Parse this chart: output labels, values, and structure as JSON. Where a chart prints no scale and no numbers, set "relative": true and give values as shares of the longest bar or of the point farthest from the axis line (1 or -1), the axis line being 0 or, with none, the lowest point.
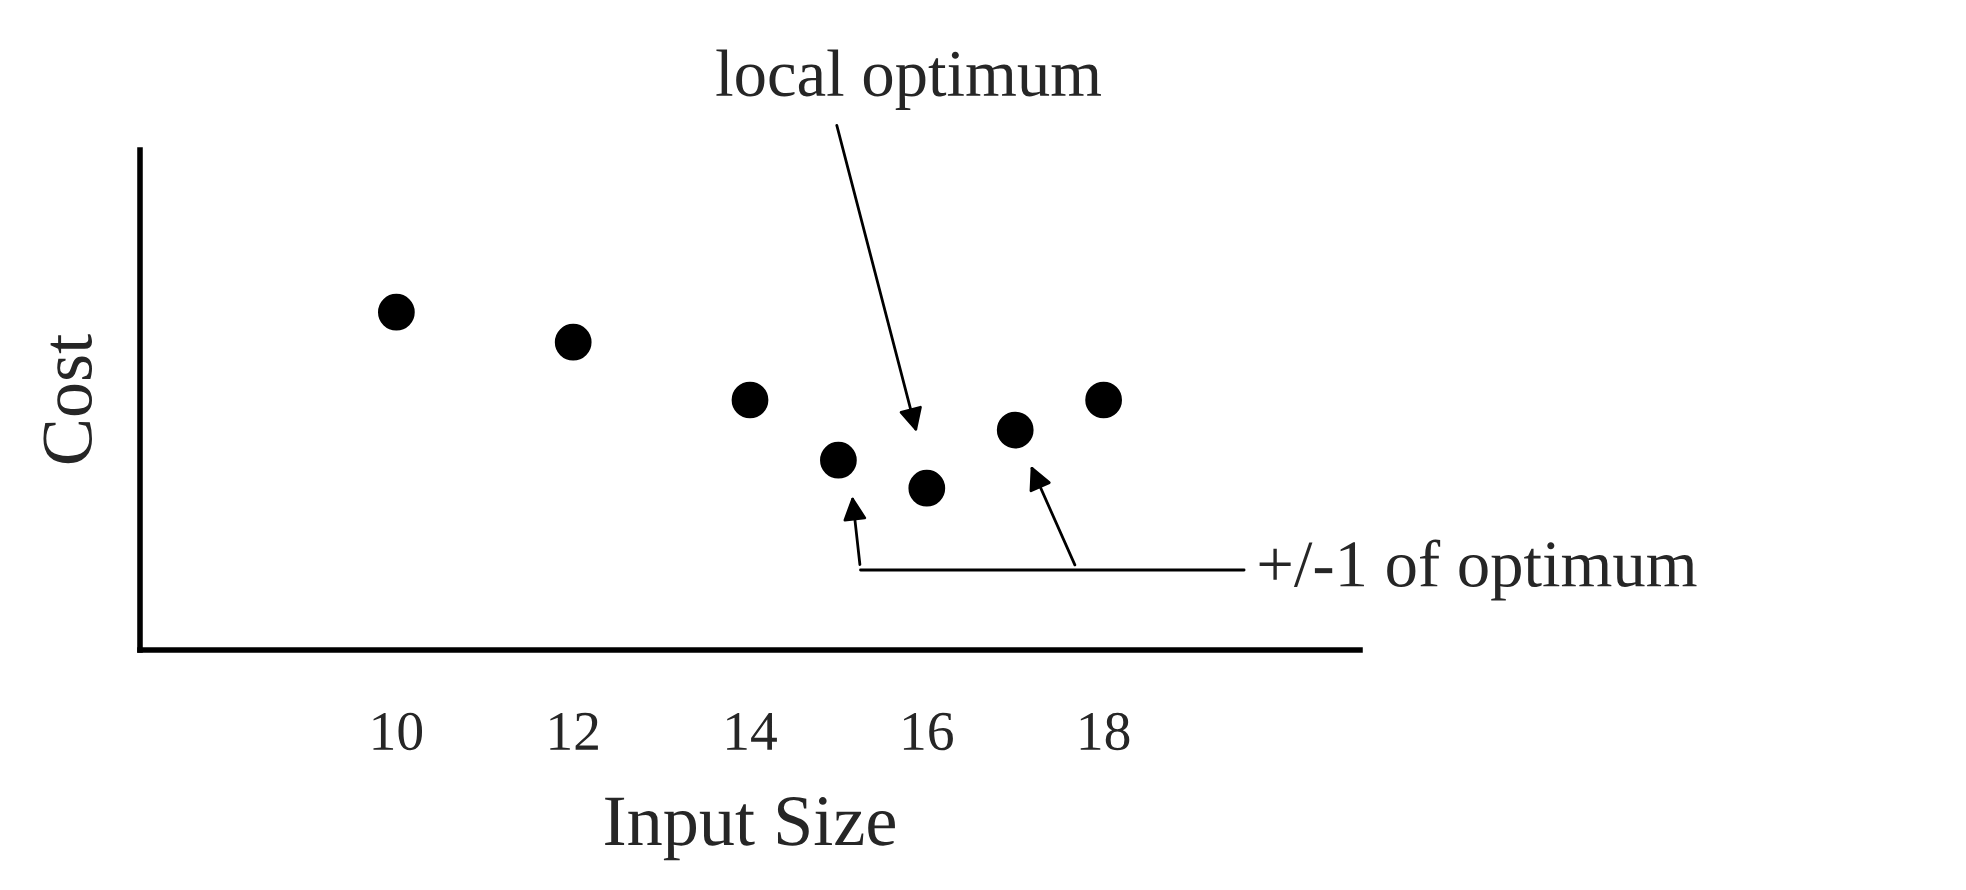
{
  "chart_data": {
    "type": "scatter",
    "xlabel": "Input Size",
    "ylabel": "Cost",
    "relative": true,
    "x": [
      10,
      12,
      14,
      15,
      16,
      17,
      18
    ],
    "values": [
      1,
      0.911,
      0.74,
      0.562,
      0.479,
      0.651,
      0.74
    ],
    "color": "#000000",
    "marker": "circle",
    "grid": false,
    "xlim": [
      7.1,
      20.9
    ],
    "xticks": [
      10,
      12,
      14,
      16,
      18
    ],
    "annotations": [
      "local optimum",
      "+/-1 of optimum"
    ]
  }
}
